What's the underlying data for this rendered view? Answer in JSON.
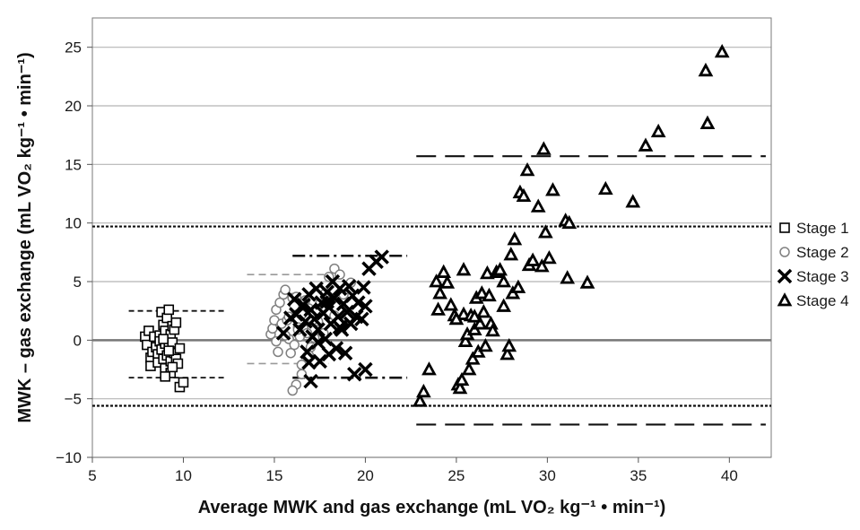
{
  "chart_data": {
    "type": "scatter",
    "xlabel": "Average MWK and gas exchange (mL VO₂ kg⁻¹ • min⁻¹)",
    "ylabel": "MWK – gas exchange (mL VO₂ kg⁻¹ • min⁻¹)",
    "xlim": [
      5,
      42.3
    ],
    "ylim": [
      -10,
      27.5
    ],
    "xticks": [
      5,
      10,
      15,
      20,
      25,
      30,
      35,
      40
    ],
    "yticks": [
      -10,
      -5,
      0,
      5,
      10,
      15,
      20,
      25
    ],
    "grid": "horizontal",
    "legend_position": "right",
    "series": [
      {
        "name": "Stage 1",
        "marker": "square",
        "color": "#000000",
        "points": [
          [
            7.9,
            0.3
          ],
          [
            8.1,
            0.8
          ],
          [
            8.0,
            -0.4
          ],
          [
            8.2,
            -1.5
          ],
          [
            8.2,
            -2.2
          ],
          [
            8.3,
            -1.0
          ],
          [
            8.4,
            0.3
          ],
          [
            8.5,
            -0.6
          ],
          [
            8.6,
            -1.2
          ],
          [
            8.6,
            -1.9
          ],
          [
            8.7,
            0.4
          ],
          [
            8.7,
            -0.1
          ],
          [
            8.8,
            2.4
          ],
          [
            8.8,
            -0.8
          ],
          [
            8.9,
            1.3
          ],
          [
            8.9,
            -1.6
          ],
          [
            9.0,
            0.8
          ],
          [
            9.0,
            -0.3
          ],
          [
            9.0,
            -2.4
          ],
          [
            9.1,
            1.9
          ],
          [
            9.1,
            -1.3
          ],
          [
            9.2,
            2.6
          ],
          [
            9.2,
            -0.6
          ],
          [
            9.3,
            0.5
          ],
          [
            9.3,
            -1.8
          ],
          [
            9.3,
            -2.8
          ],
          [
            9.4,
            1.2
          ],
          [
            9.4,
            -0.2
          ],
          [
            9.5,
            -1.1
          ],
          [
            9.5,
            0.9
          ],
          [
            9.6,
            -1.6
          ],
          [
            9.6,
            1.5
          ],
          [
            9.7,
            -2.0
          ],
          [
            9.8,
            -0.7
          ],
          [
            9.8,
            -4.0
          ],
          [
            10.0,
            -3.6
          ],
          [
            9.0,
            -3.1
          ],
          [
            8.9,
            0.1
          ],
          [
            9.2,
            -0.9
          ],
          [
            9.4,
            -2.3
          ]
        ]
      },
      {
        "name": "Stage 2",
        "marker": "circle",
        "color": "#808080",
        "points": [
          [
            14.8,
            0.5
          ],
          [
            14.9,
            1.0
          ],
          [
            15.0,
            1.7
          ],
          [
            15.1,
            2.6
          ],
          [
            15.1,
            -0.1
          ],
          [
            15.3,
            3.2
          ],
          [
            15.4,
            1.4
          ],
          [
            15.5,
            3.9
          ],
          [
            15.6,
            4.3
          ],
          [
            15.7,
            1.7
          ],
          [
            15.8,
            0.1
          ],
          [
            15.8,
            2.0
          ],
          [
            15.9,
            -1.1
          ],
          [
            16.0,
            3.6
          ],
          [
            16.1,
            2.9
          ],
          [
            16.1,
            -0.4
          ],
          [
            16.2,
            3.7
          ],
          [
            16.3,
            1.1
          ],
          [
            16.4,
            0.3
          ],
          [
            16.5,
            2.2
          ],
          [
            16.5,
            -2.1
          ],
          [
            16.6,
            1.0
          ],
          [
            16.7,
            3.4
          ],
          [
            16.8,
            -1.4
          ],
          [
            16.8,
            0.6
          ],
          [
            16.9,
            2.7
          ],
          [
            17.0,
            -0.6
          ],
          [
            16.2,
            -3.8
          ],
          [
            16.0,
            -4.3
          ],
          [
            16.5,
            -2.9
          ],
          [
            17.4,
            1.6
          ],
          [
            17.5,
            3.1
          ],
          [
            17.8,
            4.0
          ],
          [
            18.0,
            5.4
          ],
          [
            18.3,
            6.1
          ],
          [
            18.6,
            5.6
          ],
          [
            18.8,
            3.9
          ],
          [
            19.2,
            4.9
          ],
          [
            16.3,
            0.9
          ],
          [
            15.6,
            0.4
          ],
          [
            17.1,
            1.7
          ],
          [
            17.2,
            0.2
          ],
          [
            18.3,
            2.1
          ],
          [
            17.7,
            0.6
          ],
          [
            16.9,
            -1.3
          ],
          [
            15.2,
            -1.0
          ]
        ]
      },
      {
        "name": "Stage 3",
        "marker": "x",
        "color": "#000000",
        "points": [
          [
            15.5,
            0.6
          ],
          [
            15.9,
            1.9
          ],
          [
            16.1,
            3.5
          ],
          [
            16.2,
            2.2
          ],
          [
            16.4,
            0.9
          ],
          [
            16.6,
            3.0
          ],
          [
            16.7,
            1.6
          ],
          [
            16.8,
            -1.0
          ],
          [
            16.9,
            3.9
          ],
          [
            17.0,
            2.6
          ],
          [
            17.0,
            -3.5
          ],
          [
            17.1,
            0.3
          ],
          [
            17.2,
            1.8
          ],
          [
            17.3,
            4.4
          ],
          [
            17.4,
            0.9
          ],
          [
            17.5,
            -1.8
          ],
          [
            17.6,
            3.2
          ],
          [
            17.7,
            2.3
          ],
          [
            17.8,
            0.1
          ],
          [
            17.9,
            4.1
          ],
          [
            18.0,
            2.8
          ],
          [
            18.0,
            -1.2
          ],
          [
            18.1,
            1.4
          ],
          [
            18.2,
            5.0
          ],
          [
            18.3,
            3.6
          ],
          [
            18.4,
            -0.7
          ],
          [
            18.5,
            2.0
          ],
          [
            18.6,
            4.4
          ],
          [
            18.7,
            0.9
          ],
          [
            18.8,
            3.1
          ],
          [
            18.9,
            -1.1
          ],
          [
            19.0,
            2.4
          ],
          [
            19.1,
            4.6
          ],
          [
            19.2,
            1.4
          ],
          [
            19.3,
            3.8
          ],
          [
            19.4,
            -2.9
          ],
          [
            19.5,
            2.0
          ],
          [
            19.6,
            3.2
          ],
          [
            19.8,
            1.8
          ],
          [
            19.9,
            4.5
          ],
          [
            20.0,
            2.9
          ],
          [
            20.0,
            -2.5
          ],
          [
            20.2,
            6.1
          ],
          [
            20.6,
            6.7
          ],
          [
            20.9,
            7.1
          ],
          [
            16.9,
            -1.9
          ],
          [
            17.4,
            -0.2
          ],
          [
            18.6,
            1.1
          ],
          [
            16.5,
            2.9
          ],
          [
            17.9,
            3.3
          ]
        ]
      },
      {
        "name": "Stage 4",
        "marker": "triangle",
        "color": "#000000",
        "points": [
          [
            23.0,
            -5.2
          ],
          [
            23.2,
            -4.4
          ],
          [
            23.5,
            -2.5
          ],
          [
            23.9,
            5.0
          ],
          [
            24.0,
            2.6
          ],
          [
            24.1,
            4.0
          ],
          [
            24.3,
            5.8
          ],
          [
            24.5,
            4.9
          ],
          [
            24.7,
            3.0
          ],
          [
            24.9,
            2.1
          ],
          [
            25.1,
            -3.8
          ],
          [
            25.2,
            -4.1
          ],
          [
            25.3,
            -3.4
          ],
          [
            25.4,
            2.2
          ],
          [
            25.4,
            6.0
          ],
          [
            25.5,
            -0.1
          ],
          [
            25.6,
            0.5
          ],
          [
            25.7,
            -2.5
          ],
          [
            25.8,
            2.1
          ],
          [
            25.9,
            -1.6
          ],
          [
            26.0,
            0.9
          ],
          [
            26.1,
            3.6
          ],
          [
            26.2,
            -1.0
          ],
          [
            26.3,
            1.4
          ],
          [
            26.4,
            4.0
          ],
          [
            26.5,
            2.4
          ],
          [
            26.6,
            -0.5
          ],
          [
            26.7,
            5.7
          ],
          [
            26.8,
            3.8
          ],
          [
            26.9,
            1.4
          ],
          [
            27.0,
            0.8
          ],
          [
            27.2,
            5.8
          ],
          [
            27.4,
            6.0
          ],
          [
            27.6,
            2.9
          ],
          [
            27.8,
            -1.2
          ],
          [
            27.9,
            -0.5
          ],
          [
            28.0,
            7.3
          ],
          [
            28.1,
            4.0
          ],
          [
            28.2,
            8.6
          ],
          [
            28.4,
            4.5
          ],
          [
            28.5,
            12.6
          ],
          [
            28.7,
            12.3
          ],
          [
            28.9,
            14.5
          ],
          [
            29.0,
            6.4
          ],
          [
            29.2,
            6.8
          ],
          [
            29.5,
            11.4
          ],
          [
            29.7,
            6.3
          ],
          [
            29.9,
            9.2
          ],
          [
            30.1,
            7.0
          ],
          [
            30.3,
            12.8
          ],
          [
            29.8,
            16.3
          ],
          [
            31.0,
            10.2
          ],
          [
            31.2,
            10.0
          ],
          [
            32.2,
            4.9
          ],
          [
            31.1,
            5.3
          ],
          [
            33.2,
            12.9
          ],
          [
            34.7,
            11.8
          ],
          [
            35.4,
            16.6
          ],
          [
            36.1,
            17.8
          ],
          [
            38.7,
            23.0
          ],
          [
            38.8,
            18.5
          ],
          [
            39.6,
            24.6
          ],
          [
            27.6,
            5.0
          ],
          [
            26.0,
            2.0
          ],
          [
            25.0,
            1.8
          ]
        ]
      }
    ],
    "limit_lines": [
      {
        "style": "dotted-fine",
        "y": 9.7,
        "x": [
          5,
          42.3
        ]
      },
      {
        "style": "dotted-fine",
        "y": -5.6,
        "x": [
          5,
          42.3
        ]
      },
      {
        "style": "short-dash",
        "y": 2.5,
        "x": [
          7.0,
          12.3
        ]
      },
      {
        "style": "short-dash",
        "y": -3.2,
        "x": [
          7.0,
          12.3
        ]
      },
      {
        "style": "medium-dash",
        "y": 5.6,
        "x": [
          13.5,
          18.0
        ]
      },
      {
        "style": "medium-dash",
        "y": -2.0,
        "x": [
          13.5,
          18.0
        ]
      },
      {
        "style": "dash-dot",
        "y": 7.2,
        "x": [
          16.0,
          22.3
        ]
      },
      {
        "style": "dash-dot",
        "y": -3.2,
        "x": [
          16.0,
          22.3
        ]
      },
      {
        "style": "long-dash",
        "y": 15.7,
        "x": [
          22.8,
          42.0
        ]
      },
      {
        "style": "long-dash",
        "y": -7.2,
        "x": [
          22.8,
          42.0
        ]
      }
    ]
  }
}
